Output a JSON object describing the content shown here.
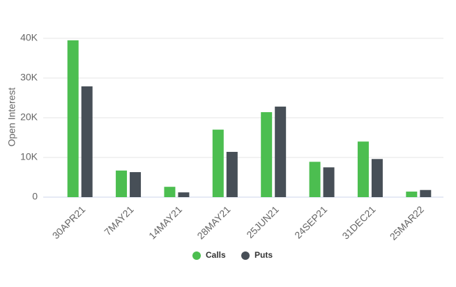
{
  "chart_data": {
    "type": "bar",
    "y_label": "Open Interest",
    "categories": [
      "30APR21",
      "7MAY21",
      "14MAY21",
      "28MAY21",
      "25JUN21",
      "24SEP21",
      "31DEC21",
      "25MAR22"
    ],
    "series": [
      {
        "name": "Calls",
        "color": "#4cbe50",
        "values": [
          39500,
          6700,
          2600,
          17000,
          21400,
          8900,
          14000,
          1400
        ]
      },
      {
        "name": "Puts",
        "color": "#474f57",
        "values": [
          27900,
          6300,
          1200,
          11400,
          22800,
          7500,
          9600,
          1800
        ]
      }
    ],
    "ylim": [
      0,
      40000
    ],
    "yticks": [
      0,
      {
        "value": 10000,
        "label": "10K"
      },
      {
        "value": 20000,
        "label": "20K"
      },
      {
        "value": 30000,
        "label": "30K"
      },
      {
        "value": 40000,
        "label": "40K"
      }
    ],
    "grid": true
  }
}
